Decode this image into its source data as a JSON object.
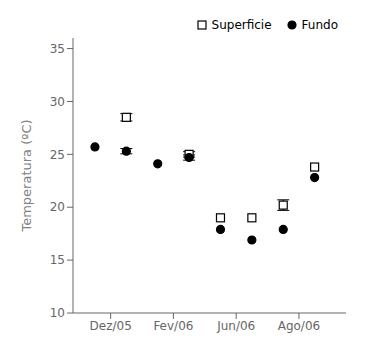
{
  "chart_data": {
    "type": "scatter",
    "ylabel": "Temperatura (ºC)",
    "xlim": [
      0.3,
      9.0
    ],
    "xticks": [
      {
        "value": 1.5,
        "label": "Dez/05"
      },
      {
        "value": 3.5,
        "label": "Fev/06"
      },
      {
        "value": 5.5,
        "label": "Jun/06"
      },
      {
        "value": 7.5,
        "label": "Ago/06"
      }
    ],
    "ylim": [
      10,
      36
    ],
    "yticks": [
      10,
      15,
      20,
      25,
      30,
      35
    ],
    "grid": false,
    "legend": "upper right",
    "x": [
      1,
      2,
      3,
      4,
      5,
      6,
      7,
      8
    ],
    "series": [
      {
        "name": "Superficie",
        "color": "#000000",
        "marker": "square",
        "values": [
          null,
          28.5,
          null,
          25.0,
          19.0,
          19.0,
          20.2,
          23.8
        ],
        "yerr": [
          null,
          0.35,
          null,
          0.25,
          null,
          null,
          0.5,
          null
        ]
      },
      {
        "name": "Fundo",
        "color": "#000000",
        "marker": "circle",
        "values": [
          25.7,
          25.3,
          24.1,
          24.7,
          17.9,
          16.9,
          17.9,
          22.8
        ],
        "yerr": [
          null,
          0.25,
          null,
          0.25,
          null,
          null,
          null,
          null
        ]
      }
    ]
  }
}
